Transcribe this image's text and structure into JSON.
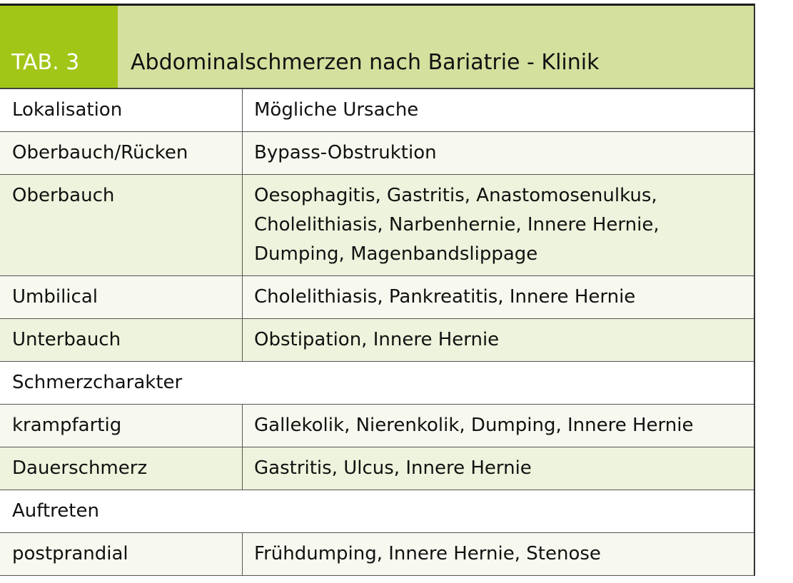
{
  "header": {
    "tab_label": "TAB. 3",
    "title": "Abdominalschmerzen nach Bariatrie - Klinik"
  },
  "colors": {
    "tab_bg": "#a2c617",
    "title_bg": "#d4e09e",
    "row_light": "#f7f8ef",
    "row_green": "#edf3dc"
  },
  "rows": [
    {
      "c1": "Lokalisation",
      "c2": "Mögliche Ursache"
    },
    {
      "c1": "Oberbauch/Rücken",
      "c2": "Bypass-Obstruktion"
    },
    {
      "c1": "Oberbauch",
      "c2": "Oesophagitis, Gastritis, Anastomosenulkus, Cholelithiasis, Narbenhernie, Innere Hernie, Dumping, Magenbandslippage"
    },
    {
      "c1": "Umbilical",
      "c2": "Cholelithiasis, Pankreatitis, Innere Hernie"
    },
    {
      "c1": "Unterbauch",
      "c2": "Obstipation, Innere Hernie"
    },
    {
      "c1": "Schmerzcharakter"
    },
    {
      "c1": "krampfartig",
      "c2": "Gallekolik, Nierenkolik, Dumping, Innere Hernie"
    },
    {
      "c1": "Dauerschmerz",
      "c2": "Gastritis, Ulcus, Innere Hernie"
    },
    {
      "c1": "Auftreten"
    },
    {
      "c1": "postprandial",
      "c2": "Frühdumping, Innere Hernie, Stenose"
    }
  ]
}
